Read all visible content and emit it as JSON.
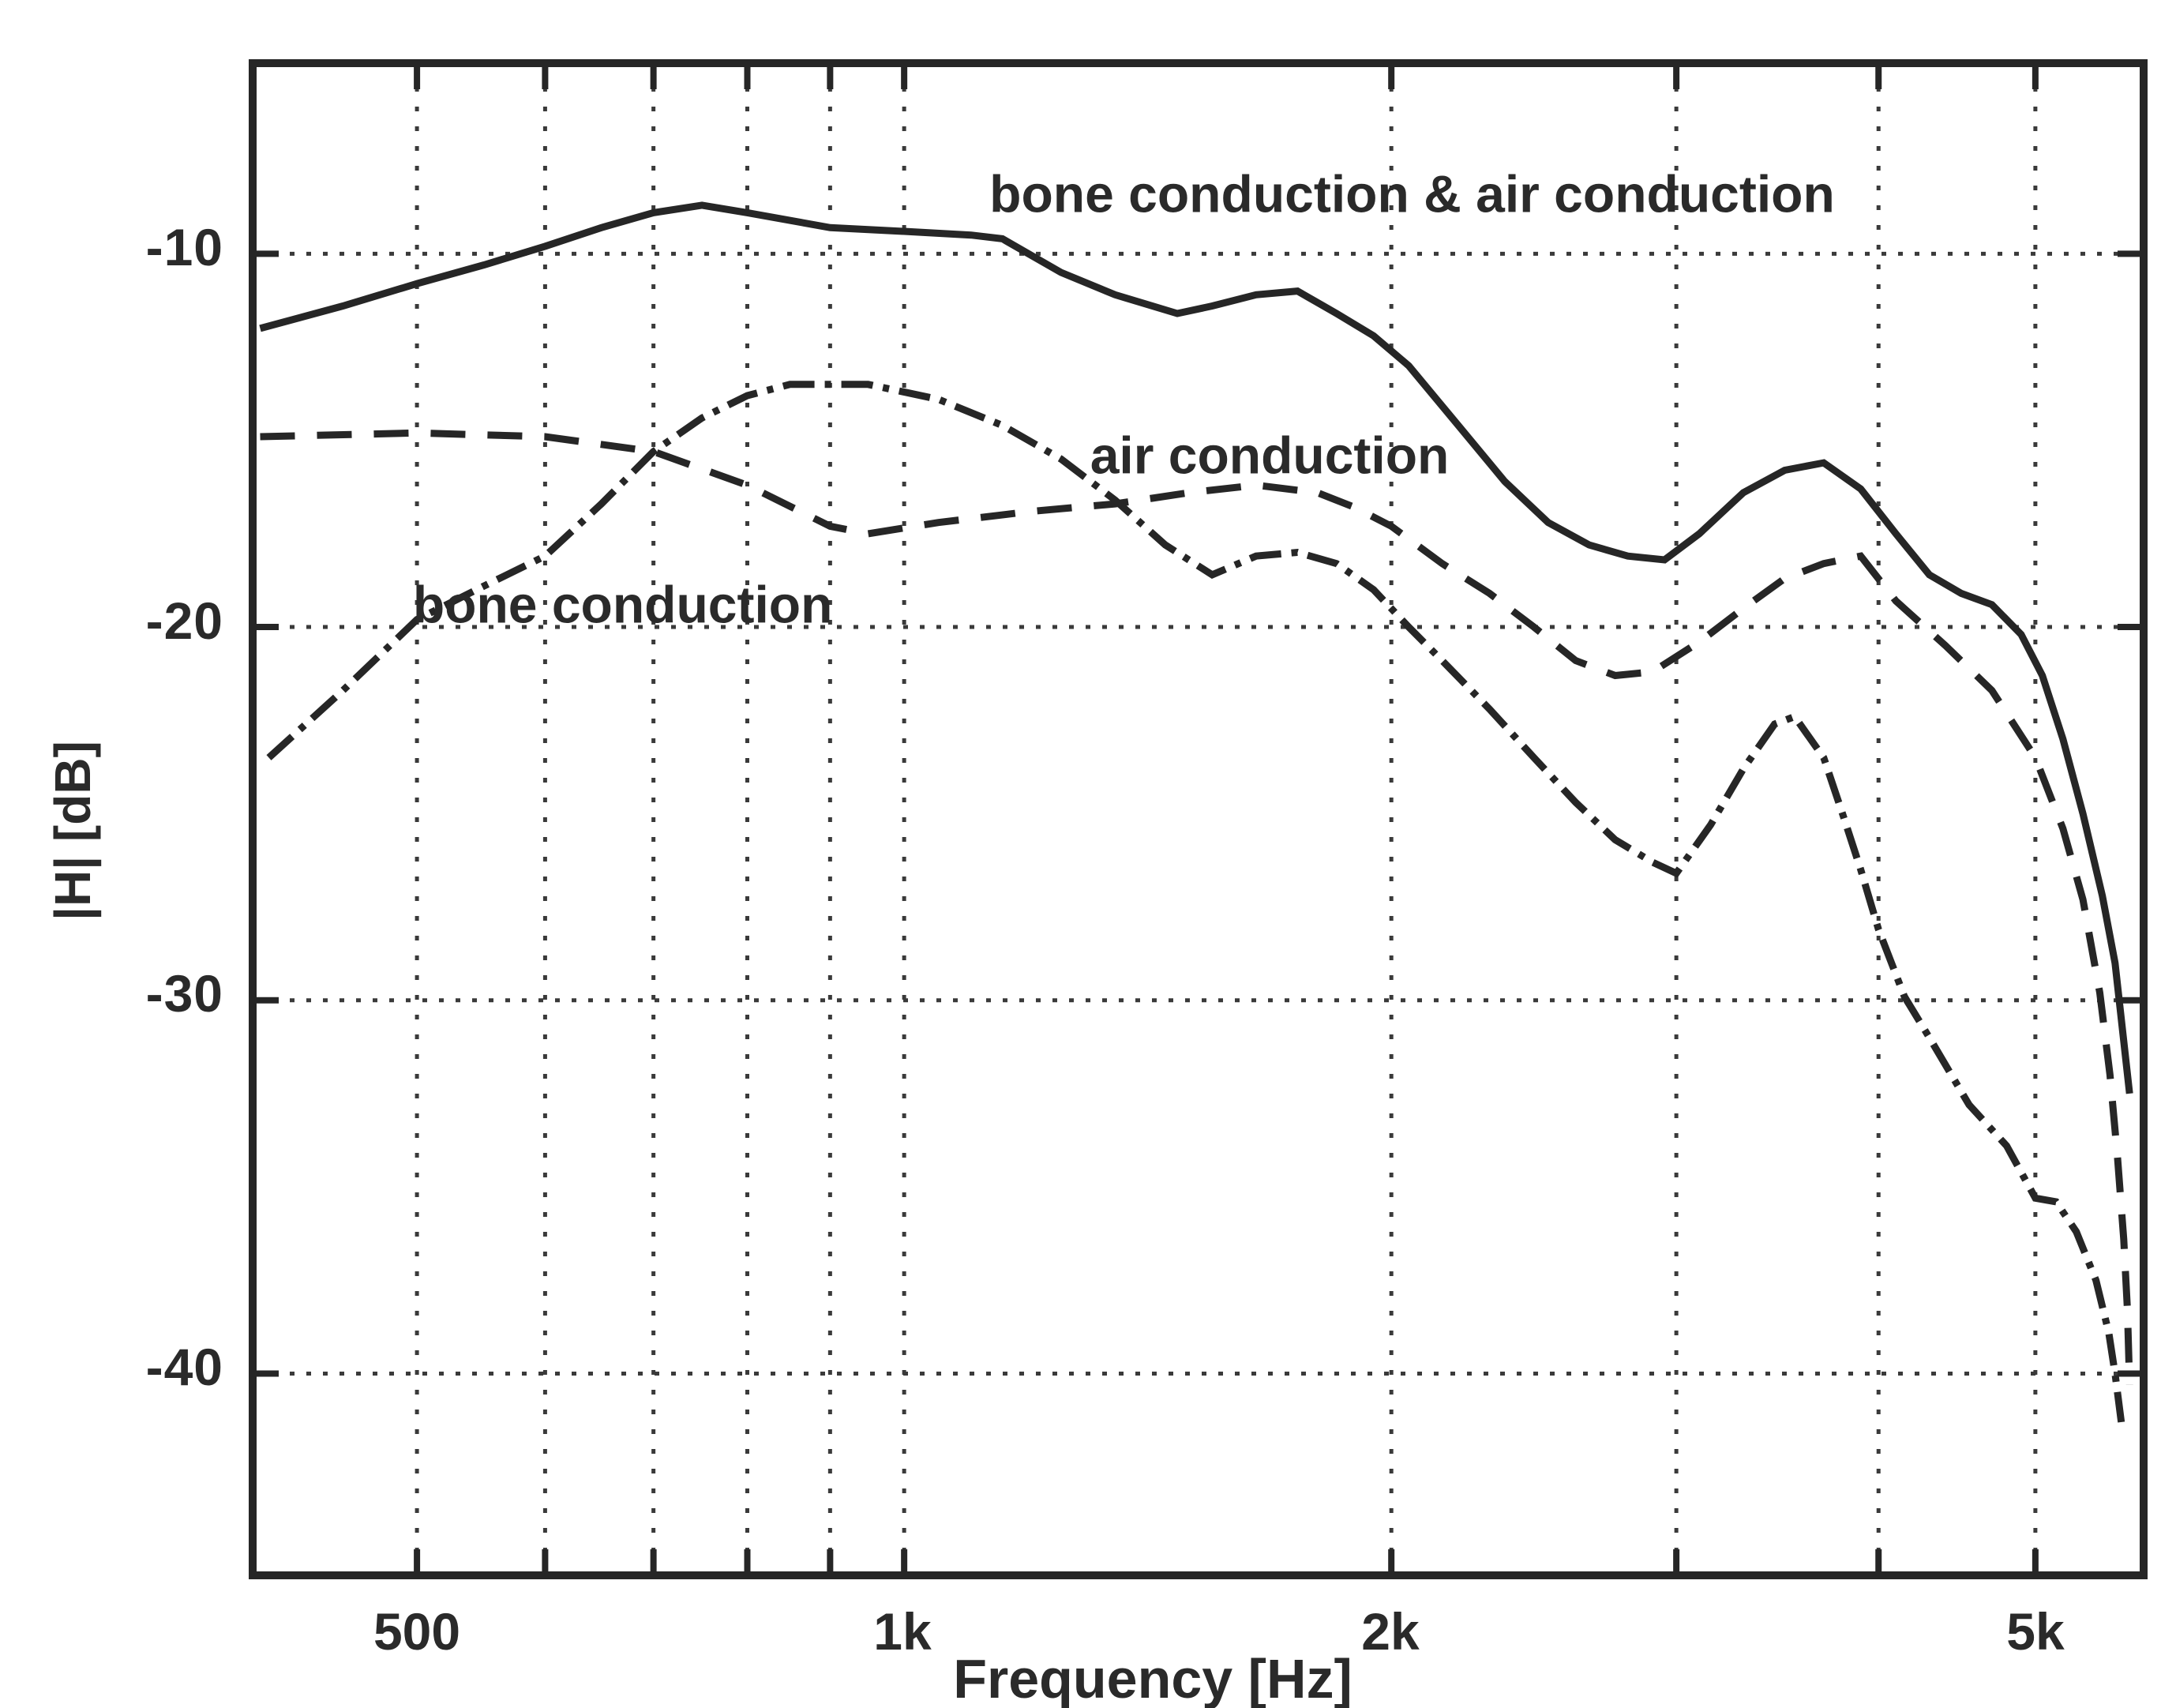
{
  "figure": {
    "background": "#ffffff",
    "ink_color": "#262626"
  },
  "axes": {
    "ylabel": "|H| [dB]",
    "xlabel": "Frequency [Hz]",
    "x_ticks": [
      {
        "label": "500",
        "f": 500
      },
      {
        "label": "1k",
        "f": 1000
      },
      {
        "label": "2k",
        "f": 2000
      },
      {
        "label": "5k",
        "f": 5000
      }
    ],
    "y_ticks": [
      {
        "label": "-10",
        "db": -10
      },
      {
        "label": "-20",
        "db": -20
      },
      {
        "label": "-30",
        "db": -30
      },
      {
        "label": "-40",
        "db": -40
      }
    ]
  },
  "chart_data": {
    "type": "line",
    "title": "",
    "xlabel": "Frequency [Hz]",
    "ylabel": "|H| [dB]",
    "x_scale": "log",
    "xlim": [
      398,
      5800
    ],
    "ylim": [
      -45.3,
      -5.0
    ],
    "grid": "dotted",
    "legend_position": "inline-labels",
    "x_gridlines": [
      500,
      600,
      700,
      800,
      900,
      1000,
      2000,
      3000,
      4000,
      5000
    ],
    "y_gridlines": [
      -10,
      -20,
      -30,
      -40
    ],
    "series": [
      {
        "name": "bone conduction & air conduction",
        "style": "solid",
        "points": [
          [
            400,
            -12.0
          ],
          [
            450,
            -11.4
          ],
          [
            500,
            -10.8
          ],
          [
            550,
            -10.3
          ],
          [
            600,
            -9.8
          ],
          [
            650,
            -9.3
          ],
          [
            700,
            -8.9
          ],
          [
            750,
            -8.7
          ],
          [
            800,
            -8.9
          ],
          [
            900,
            -9.3
          ],
          [
            1000,
            -9.4
          ],
          [
            1100,
            -9.5
          ],
          [
            1150,
            -9.6
          ],
          [
            1250,
            -10.5
          ],
          [
            1350,
            -11.1
          ],
          [
            1475,
            -11.6
          ],
          [
            1550,
            -11.4
          ],
          [
            1650,
            -11.1
          ],
          [
            1750,
            -11.0
          ],
          [
            1850,
            -11.6
          ],
          [
            1950,
            -12.2
          ],
          [
            2050,
            -13.0
          ],
          [
            2200,
            -14.6
          ],
          [
            2350,
            -16.1
          ],
          [
            2500,
            -17.2
          ],
          [
            2650,
            -17.8
          ],
          [
            2800,
            -18.1
          ],
          [
            2950,
            -18.2
          ],
          [
            3100,
            -17.5
          ],
          [
            3300,
            -16.4
          ],
          [
            3500,
            -15.8
          ],
          [
            3700,
            -15.6
          ],
          [
            3900,
            -16.3
          ],
          [
            4100,
            -17.5
          ],
          [
            4300,
            -18.6
          ],
          [
            4500,
            -19.1
          ],
          [
            4700,
            -19.4
          ],
          [
            4900,
            -20.2
          ],
          [
            5050,
            -21.3
          ],
          [
            5200,
            -23.0
          ],
          [
            5350,
            -25.0
          ],
          [
            5500,
            -27.2
          ],
          [
            5600,
            -29.0
          ],
          [
            5717,
            -32.5
          ]
        ]
      },
      {
        "name": "air conduction",
        "style": "dashed",
        "points": [
          [
            400,
            -14.9
          ],
          [
            500,
            -14.8
          ],
          [
            600,
            -14.9
          ],
          [
            700,
            -15.3
          ],
          [
            800,
            -16.2
          ],
          [
            900,
            -17.3
          ],
          [
            950,
            -17.5
          ],
          [
            1050,
            -17.2
          ],
          [
            1200,
            -16.9
          ],
          [
            1350,
            -16.7
          ],
          [
            1500,
            -16.4
          ],
          [
            1650,
            -16.2
          ],
          [
            1800,
            -16.4
          ],
          [
            1900,
            -16.8
          ],
          [
            2000,
            -17.3
          ],
          [
            2150,
            -18.3
          ],
          [
            2300,
            -19.1
          ],
          [
            2450,
            -20.0
          ],
          [
            2600,
            -20.9
          ],
          [
            2750,
            -21.3
          ],
          [
            2900,
            -21.2
          ],
          [
            3100,
            -20.4
          ],
          [
            3300,
            -19.5
          ],
          [
            3500,
            -18.7
          ],
          [
            3700,
            -18.3
          ],
          [
            3900,
            -18.1
          ],
          [
            4100,
            -19.3
          ],
          [
            4400,
            -20.5
          ],
          [
            4700,
            -21.7
          ],
          [
            5000,
            -23.5
          ],
          [
            5200,
            -25.4
          ],
          [
            5350,
            -27.3
          ],
          [
            5480,
            -29.8
          ],
          [
            5560,
            -32.0
          ],
          [
            5620,
            -34.2
          ],
          [
            5670,
            -36.4
          ],
          [
            5700,
            -38.3
          ],
          [
            5717,
            -40.3
          ]
        ]
      },
      {
        "name": "bone conduction",
        "style": "dashdot",
        "points": [
          [
            405,
            -23.5
          ],
          [
            450,
            -21.7
          ],
          [
            500,
            -19.8
          ],
          [
            550,
            -18.9
          ],
          [
            600,
            -18.1
          ],
          [
            650,
            -16.7
          ],
          [
            700,
            -15.3
          ],
          [
            750,
            -14.4
          ],
          [
            800,
            -13.8
          ],
          [
            850,
            -13.5
          ],
          [
            950,
            -13.5
          ],
          [
            1050,
            -13.9
          ],
          [
            1150,
            -14.6
          ],
          [
            1250,
            -15.5
          ],
          [
            1350,
            -16.6
          ],
          [
            1450,
            -17.8
          ],
          [
            1550,
            -18.6
          ],
          [
            1650,
            -18.1
          ],
          [
            1750,
            -18.0
          ],
          [
            1850,
            -18.3
          ],
          [
            1950,
            -19.0
          ],
          [
            2050,
            -20.0
          ],
          [
            2150,
            -20.9
          ],
          [
            2300,
            -22.2
          ],
          [
            2450,
            -23.5
          ],
          [
            2600,
            -24.7
          ],
          [
            2750,
            -25.7
          ],
          [
            2900,
            -26.3
          ],
          [
            3000,
            -26.6
          ],
          [
            3150,
            -25.3
          ],
          [
            3300,
            -23.8
          ],
          [
            3450,
            -22.6
          ],
          [
            3550,
            -22.4
          ],
          [
            3700,
            -23.5
          ],
          [
            3800,
            -25.0
          ],
          [
            3900,
            -26.5
          ],
          [
            4000,
            -28.1
          ],
          [
            4150,
            -29.9
          ],
          [
            4300,
            -31.0
          ],
          [
            4550,
            -32.8
          ],
          [
            4800,
            -33.9
          ],
          [
            5000,
            -35.3
          ],
          [
            5150,
            -35.4
          ],
          [
            5300,
            -36.2
          ],
          [
            5450,
            -37.5
          ],
          [
            5550,
            -38.9
          ],
          [
            5600,
            -40.0
          ],
          [
            5650,
            -41.3
          ]
        ]
      }
    ],
    "annotations": [
      {
        "text": "bone conduction & air conduction",
        "f": 2060,
        "db": -8.4
      },
      {
        "text": "air conduction",
        "f": 1682,
        "db": -15.4
      },
      {
        "text": "bone conduction",
        "f": 670,
        "db": -19.4
      }
    ]
  }
}
